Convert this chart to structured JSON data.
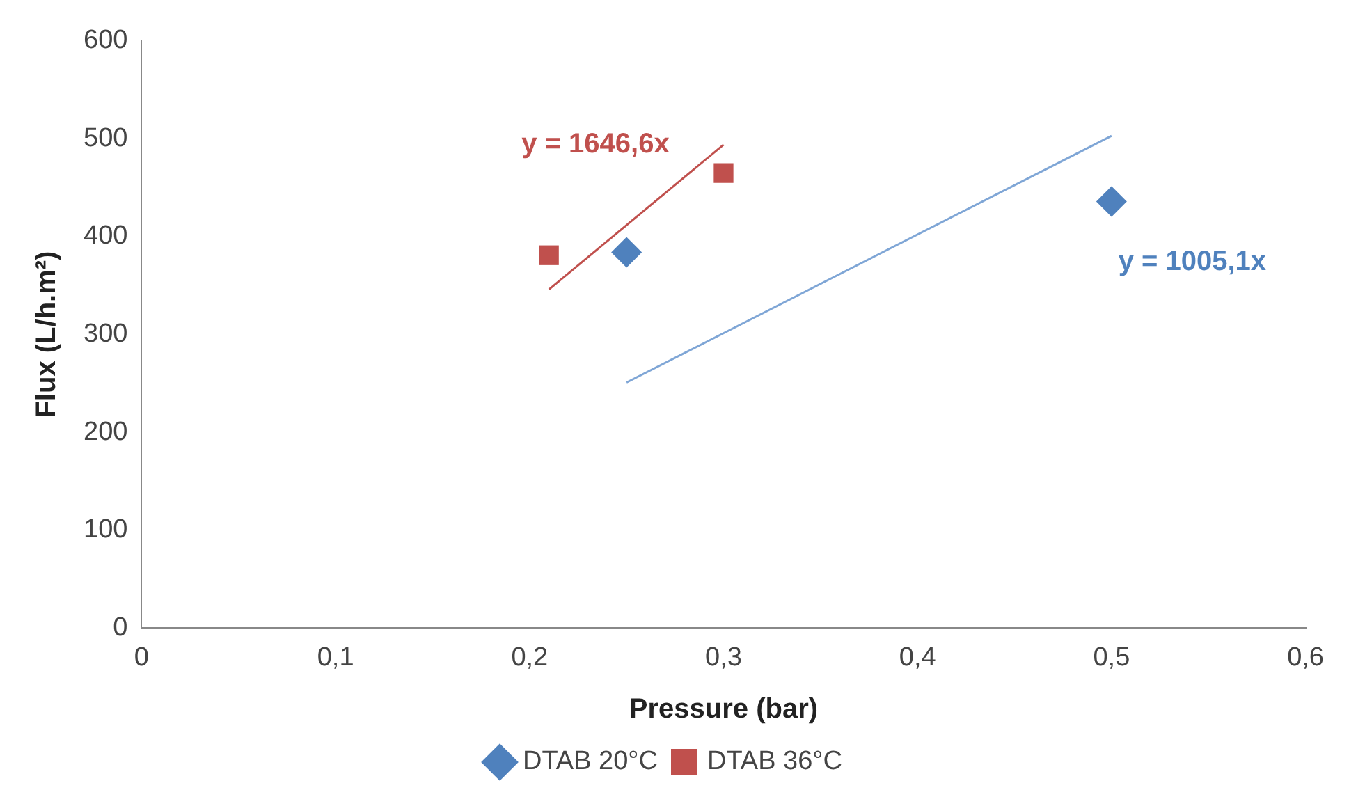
{
  "chart_data": {
    "type": "scatter",
    "xlabel": "Pressure (bar)",
    "ylabel": "Flux (L/h.m²)",
    "xlim": [
      0,
      0.6
    ],
    "xticks": [
      0,
      {
        "value": 0.1,
        "label": "0,1"
      },
      {
        "value": 0.2,
        "label": "0,2"
      },
      {
        "value": 0.3,
        "label": "0,3"
      },
      {
        "value": 0.4,
        "label": "0,4"
      },
      {
        "value": 0.5,
        "label": "0,5"
      },
      {
        "value": 0.6,
        "label": "0,6"
      }
    ],
    "ylim": [
      0,
      600
    ],
    "yticks": [
      0,
      100,
      200,
      300,
      400,
      500,
      600
    ],
    "grid": false,
    "legend": "bottom",
    "series": [
      {
        "name": "DTAB 20°C",
        "color": "#4f81bd",
        "marker": "diamond",
        "x": [
          0.25,
          0.5
        ],
        "values": [
          384,
          436
        ]
      },
      {
        "name": "DTAB 36°C",
        "color": "#c0504d",
        "marker": "square",
        "x": [
          0.21,
          0.3
        ],
        "values": [
          381,
          465
        ]
      },
      {
        "type": "line",
        "color": "#7fa6d6",
        "marker": "none",
        "x": [
          0.25,
          0.5
        ],
        "values": [
          251,
          503
        ]
      },
      {
        "type": "line",
        "color": "#c0504d",
        "marker": "none",
        "x": [
          0.21,
          0.3
        ],
        "values": [
          346,
          494
        ]
      }
    ],
    "annotations": [
      "y = 1005,1x",
      "y = 1646,6x"
    ]
  }
}
